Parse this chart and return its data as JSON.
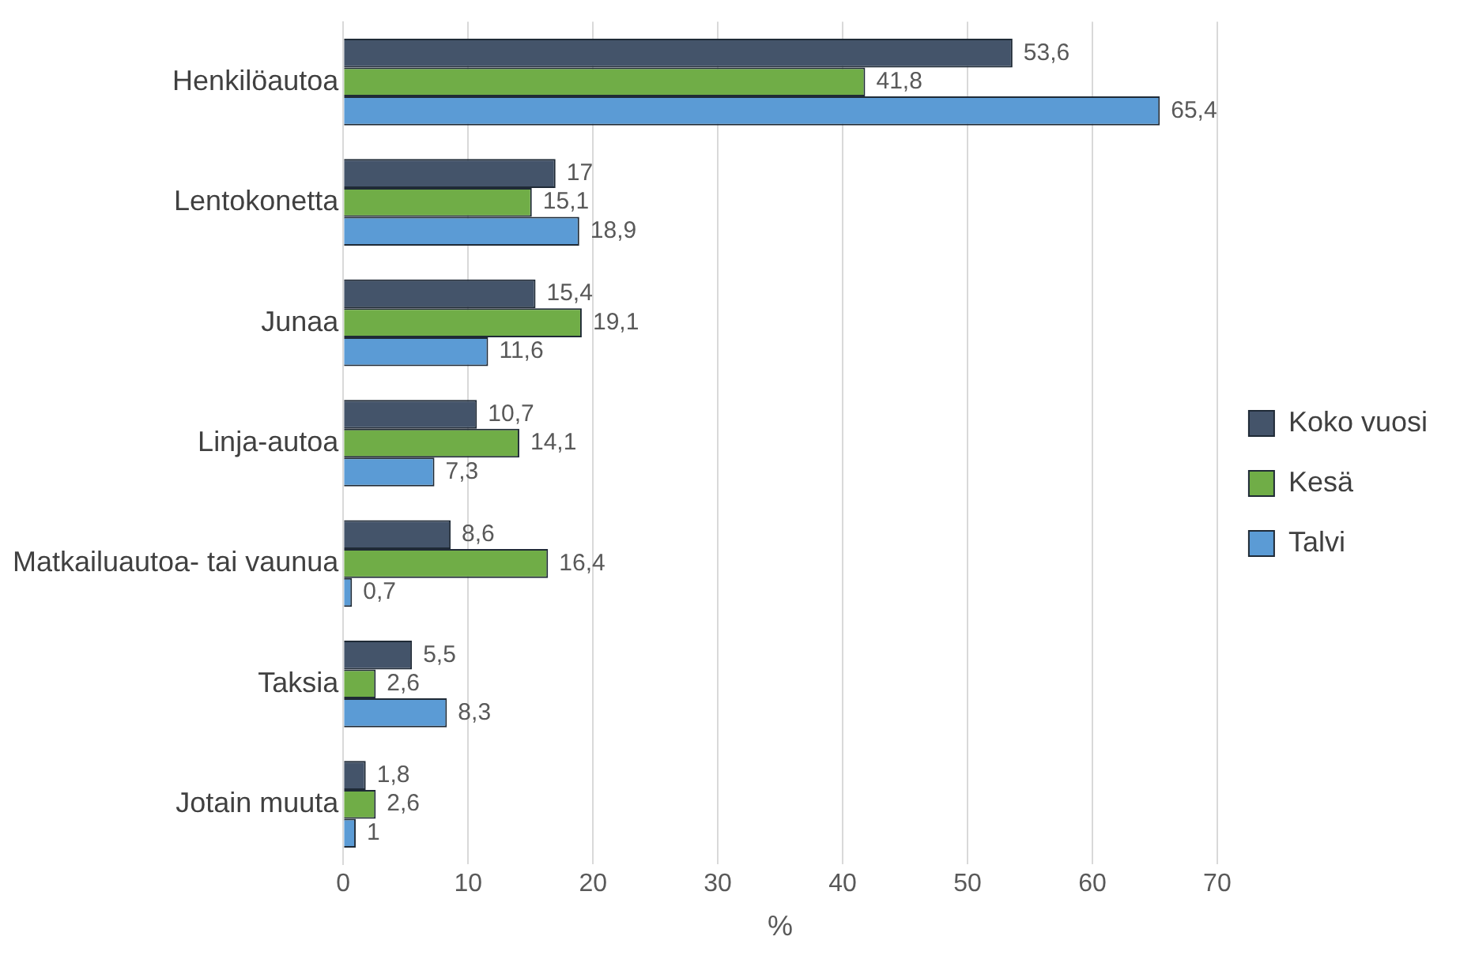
{
  "chart_data": {
    "type": "bar",
    "orientation": "horizontal",
    "xlabel": "%",
    "categories": [
      "Henkilöautoa",
      "Lentokonetta",
      "Junaa",
      "Linja-autoa",
      "Matkailuautoa- tai vaunua",
      "Taksia",
      "Jotain muuta"
    ],
    "series": [
      {
        "name": "Koko vuosi",
        "color": "#44546a",
        "values": [
          53.6,
          17,
          15.4,
          10.7,
          8.6,
          5.5,
          1.8
        ],
        "value_labels": [
          "53,6",
          "17",
          "15,4",
          "10,7",
          "8,6",
          "5,5",
          "1,8"
        ]
      },
      {
        "name": "Kesä",
        "color": "#70ad47",
        "values": [
          41.8,
          15.1,
          19.1,
          14.1,
          16.4,
          2.6,
          2.6
        ],
        "value_labels": [
          "41,8",
          "15,1",
          "19,1",
          "14,1",
          "16,4",
          "2,6",
          "2,6"
        ]
      },
      {
        "name": "Talvi",
        "color": "#5b9bd5",
        "values": [
          65.4,
          18.9,
          11.6,
          7.3,
          0.7,
          8.3,
          1
        ],
        "value_labels": [
          "65,4",
          "18,9",
          "11,6",
          "7,3",
          "0,7",
          "8,3",
          "1"
        ]
      }
    ],
    "xlim": [
      0,
      70
    ],
    "xticks": [
      0,
      10,
      20,
      30,
      40,
      50,
      60,
      70
    ],
    "grid": "x",
    "legend": "right"
  }
}
